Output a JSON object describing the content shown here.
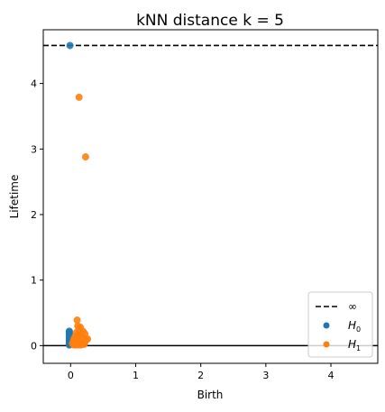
{
  "chart_data": {
    "type": "scatter",
    "title": "kNN distance k = 5",
    "xlabel": "Birth",
    "ylabel": "Lifetime",
    "xlim": [
      -0.42,
      4.72
    ],
    "ylim": [
      -0.27,
      4.82
    ],
    "xticks": [
      0,
      1,
      2,
      3,
      4
    ],
    "yticks": [
      0,
      1,
      2,
      3,
      4
    ],
    "infinity_line": 4.58,
    "zero_line": 0,
    "legend": {
      "position": "lower-right",
      "entries": [
        {
          "key": "inf",
          "label": "∞"
        },
        {
          "key": "h0",
          "label": "H",
          "sub": "0"
        },
        {
          "key": "h1",
          "label": "H",
          "sub": "1"
        }
      ]
    },
    "colors": {
      "h0": "#1f77b4",
      "h1": "#ff7f0e",
      "inf": "#000000"
    },
    "series": [
      {
        "name": "H0",
        "points": [
          [
            -0.01,
            4.58
          ],
          [
            -0.02,
            0.22
          ],
          [
            -0.02,
            0.2
          ],
          [
            -0.02,
            0.18
          ],
          [
            -0.02,
            0.16
          ],
          [
            -0.02,
            0.14
          ],
          [
            -0.02,
            0.12
          ],
          [
            -0.02,
            0.1
          ],
          [
            -0.02,
            0.08
          ],
          [
            -0.02,
            0.06
          ],
          [
            -0.02,
            0.04
          ],
          [
            -0.02,
            0.02
          ],
          [
            -0.02,
            0.01
          ]
        ]
      },
      {
        "name": "H1",
        "points": [
          [
            0.13,
            3.79
          ],
          [
            0.23,
            2.88
          ],
          [
            0.1,
            0.39
          ],
          [
            0.11,
            0.3
          ],
          [
            0.15,
            0.28
          ],
          [
            0.13,
            0.25
          ],
          [
            0.19,
            0.22
          ],
          [
            0.09,
            0.2
          ],
          [
            0.14,
            0.19
          ],
          [
            0.22,
            0.18
          ],
          [
            0.12,
            0.16
          ],
          [
            0.17,
            0.15
          ],
          [
            0.07,
            0.14
          ],
          [
            0.1,
            0.12
          ],
          [
            0.16,
            0.12
          ],
          [
            0.2,
            0.11
          ],
          [
            0.26,
            0.1
          ],
          [
            0.05,
            0.1
          ],
          [
            0.08,
            0.09
          ],
          [
            0.12,
            0.08
          ],
          [
            0.14,
            0.07
          ],
          [
            0.18,
            0.07
          ],
          [
            0.22,
            0.06
          ],
          [
            0.04,
            0.06
          ],
          [
            0.06,
            0.05
          ],
          [
            0.09,
            0.05
          ],
          [
            0.11,
            0.04
          ],
          [
            0.15,
            0.04
          ],
          [
            0.19,
            0.03
          ],
          [
            0.03,
            0.03
          ],
          [
            0.07,
            0.02
          ],
          [
            0.1,
            0.02
          ],
          [
            0.13,
            0.02
          ],
          [
            0.17,
            0.02
          ],
          [
            0.21,
            0.02
          ],
          [
            0.05,
            0.01
          ],
          [
            0.08,
            0.01
          ],
          [
            0.12,
            0.01
          ],
          [
            0.16,
            0.01
          ],
          [
            0.24,
            0.09
          ],
          [
            0.18,
            0.13
          ]
        ]
      }
    ]
  }
}
